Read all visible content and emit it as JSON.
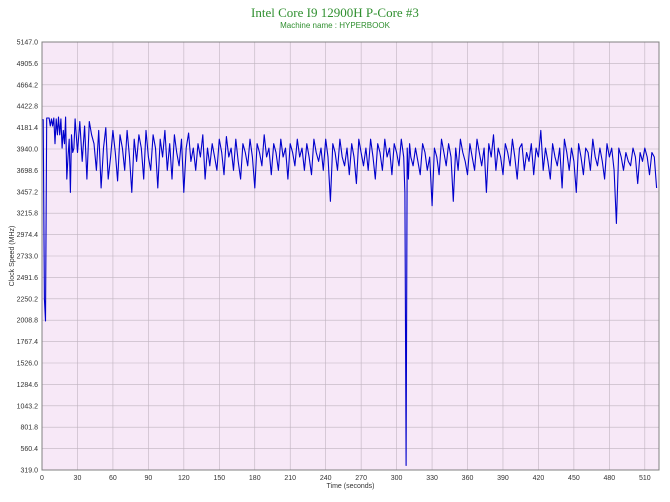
{
  "chart_data": {
    "type": "line",
    "title": "Intel Core I9 12900H P-Core #3",
    "subtitle": "Machine name : HYPERBOOK",
    "xlabel": "Time (seconds)",
    "ylabel": "Clock Speed (MHz)",
    "xlim": [
      0,
      522
    ],
    "ylim": [
      319.0,
      5147.0
    ],
    "x_ticks": [
      "0",
      "30",
      "60",
      "90",
      "120",
      "150",
      "180",
      "210",
      "240",
      "270",
      "300",
      "330",
      "360",
      "390",
      "420",
      "450",
      "480",
      "510"
    ],
    "y_ticks": [
      "319.0",
      "560.4",
      "801.8",
      "1043.2",
      "1284.6",
      "1526.0",
      "1767.4",
      "2008.8",
      "2250.2",
      "2491.6",
      "2733.0",
      "2974.4",
      "3215.8",
      "3457.2",
      "3698.6",
      "3940.0",
      "4181.4",
      "4422.8",
      "4664.2",
      "4905.6",
      "5147.0"
    ],
    "grid": true,
    "plot_background": "#f7e8f7",
    "grid_color": "#bfb3bf",
    "line_color": "#0000cc",
    "series": [
      {
        "x": [
          0,
          1,
          2,
          3,
          4,
          5,
          6,
          7,
          8,
          9,
          10,
          11,
          12,
          13,
          14,
          15,
          16,
          17,
          18,
          19,
          20,
          21,
          22,
          23,
          24,
          25,
          26,
          27,
          28,
          30,
          32,
          34,
          36,
          38,
          40,
          42,
          44,
          46,
          48,
          50,
          52,
          54,
          56,
          58,
          60,
          62,
          64,
          66,
          68,
          70,
          72,
          74,
          76,
          78,
          80,
          82,
          84,
          86,
          88,
          90,
          92,
          94,
          96,
          98,
          100,
          102,
          104,
          106,
          108,
          110,
          112,
          114,
          116,
          118,
          120,
          122,
          124,
          126,
          128,
          130,
          132,
          134,
          136,
          138,
          140,
          142,
          144,
          146,
          148,
          150,
          152,
          154,
          156,
          158,
          160,
          162,
          164,
          166,
          168,
          170,
          172,
          174,
          176,
          178,
          180,
          182,
          184,
          186,
          188,
          190,
          192,
          194,
          196,
          198,
          200,
          202,
          204,
          206,
          208,
          210,
          212,
          214,
          216,
          218,
          220,
          222,
          224,
          226,
          228,
          230,
          232,
          234,
          236,
          238,
          240,
          242,
          244,
          246,
          248,
          250,
          252,
          254,
          256,
          258,
          260,
          262,
          264,
          266,
          268,
          270,
          272,
          274,
          276,
          278,
          280,
          282,
          284,
          286,
          288,
          290,
          292,
          294,
          296,
          298,
          300,
          302,
          304,
          306,
          307,
          308,
          309,
          310,
          311,
          312,
          314,
          316,
          318,
          320,
          322,
          324,
          326,
          328,
          330,
          332,
          334,
          336,
          338,
          340,
          342,
          344,
          346,
          348,
          350,
          352,
          354,
          356,
          358,
          360,
          362,
          364,
          366,
          368,
          370,
          372,
          374,
          376,
          378,
          380,
          382,
          384,
          386,
          388,
          390,
          392,
          394,
          396,
          398,
          400,
          402,
          404,
          406,
          408,
          410,
          412,
          414,
          416,
          418,
          420,
          422,
          424,
          426,
          428,
          430,
          432,
          434,
          436,
          438,
          440,
          442,
          444,
          446,
          448,
          450,
          452,
          454,
          456,
          458,
          460,
          462,
          464,
          466,
          468,
          470,
          472,
          474,
          476,
          478,
          480,
          482,
          484,
          486,
          488,
          490,
          492,
          494,
          496,
          498,
          500,
          502,
          504,
          506,
          508,
          510,
          512,
          514,
          516,
          518,
          520
        ],
        "values": [
          4270,
          4270,
          2250,
          2000,
          4290,
          4290,
          4290,
          4200,
          4280,
          4200,
          4290,
          4000,
          4280,
          4100,
          4300,
          4100,
          4280,
          3950,
          4150,
          4000,
          4300,
          3600,
          3850,
          4050,
          3450,
          4100,
          3900,
          3950,
          4280,
          3900,
          4250,
          3800,
          4200,
          3600,
          4250,
          4100,
          4000,
          3700,
          4150,
          3500,
          3950,
          4180,
          3600,
          3850,
          4150,
          3900,
          3580,
          4100,
          3950,
          3700,
          4150,
          3850,
          3450,
          4050,
          3800,
          4100,
          3950,
          3600,
          4150,
          3850,
          3700,
          4100,
          3950,
          3500,
          4050,
          3850,
          4150,
          3700,
          4000,
          3600,
          4100,
          3900,
          3750,
          4050,
          3450,
          3950,
          4120,
          3800,
          3950,
          3700,
          4000,
          3850,
          4100,
          3600,
          3950,
          3750,
          4000,
          3850,
          3700,
          4050,
          3900,
          3650,
          4080,
          3850,
          3950,
          3700,
          4050,
          3800,
          3600,
          4000,
          3900,
          3750,
          4050,
          3850,
          3500,
          4000,
          3900,
          3750,
          4100,
          3850,
          3950,
          3650,
          4000,
          3900,
          3700,
          4050,
          3850,
          3950,
          3600,
          4000,
          3900,
          3750,
          4050,
          3850,
          3950,
          3700,
          4000,
          3850,
          3650,
          4050,
          3900,
          3800,
          3950,
          3700,
          4050,
          3850,
          3350,
          4000,
          3900,
          3700,
          4050,
          3850,
          3750,
          3950,
          3650,
          4000,
          3850,
          3550,
          4050,
          3900,
          3750,
          3950,
          3700,
          4050,
          3850,
          3600,
          4000,
          3900,
          3700,
          4050,
          3850,
          3950,
          3650,
          4000,
          3900,
          3750,
          4050,
          3850,
          3450,
          370,
          3950,
          3600,
          4000,
          3850,
          3750,
          3950,
          3800,
          3650,
          4000,
          3900,
          3700,
          3850,
          3300,
          3950,
          3850,
          3650,
          4050,
          3900,
          3750,
          4000,
          3850,
          3350,
          3950,
          3700,
          4050,
          3900,
          3800,
          3650,
          4000,
          3850,
          3700,
          4050,
          3900,
          3750,
          3950,
          3450,
          4000,
          3850,
          4100,
          3700,
          3950,
          3850,
          3650,
          4000,
          3900,
          3750,
          4050,
          3850,
          3600,
          3950,
          4000,
          3700,
          3900,
          3800,
          4000,
          3650,
          3950,
          3850,
          4150,
          3700,
          3950,
          3800,
          3600,
          4000,
          3850,
          3750,
          3950,
          3500,
          4050,
          3900,
          3700,
          3950,
          3800,
          3450,
          4000,
          3850,
          3650,
          3950,
          3900,
          3700,
          4050,
          3850,
          3750,
          3950,
          3800,
          3600,
          4000,
          3850,
          3950,
          3700,
          3100,
          3950,
          3850,
          3700,
          3900,
          3800,
          3750,
          3950,
          3850,
          3550,
          3900,
          3800,
          3950,
          3850,
          3650,
          3900,
          3850,
          3500
        ]
      }
    ]
  }
}
